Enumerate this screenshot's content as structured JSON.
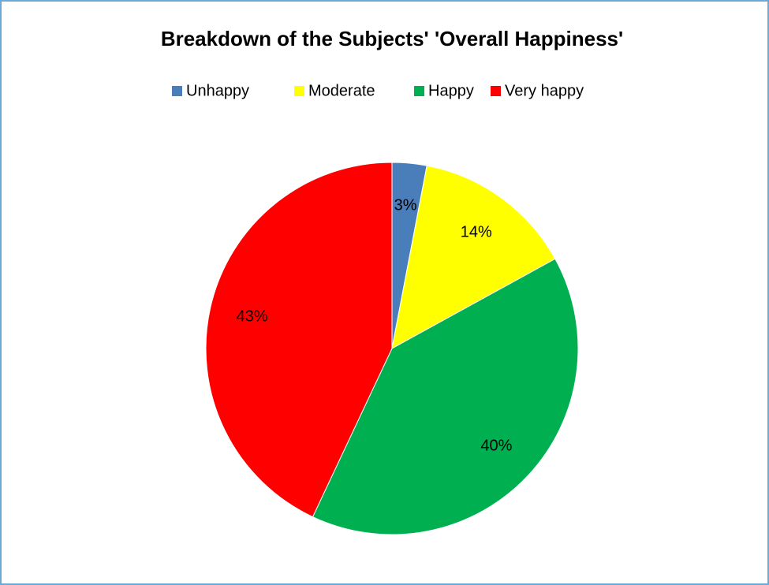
{
  "chart_data": {
    "type": "pie",
    "title": "Breakdown of the Subjects' 'Overall Happiness'",
    "categories": [
      "Unhappy",
      "Moderate",
      "Happy",
      "Very happy"
    ],
    "values": [
      3,
      14,
      40,
      43
    ],
    "value_labels": [
      "3%",
      "14%",
      "40%",
      "43%"
    ],
    "colors": [
      "#4a7ebb",
      "#ffff00",
      "#00b050",
      "#ff0000"
    ],
    "legend": "top"
  }
}
